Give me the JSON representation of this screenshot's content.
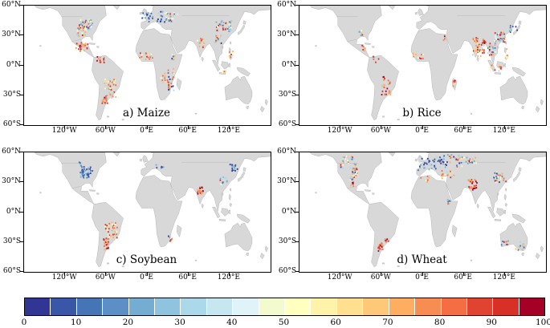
{
  "figure": {
    "background": "#ffffff",
    "land_color": "#d8d8d8",
    "land_border": "#9a9a9a",
    "map_border": "#000000"
  },
  "axes": {
    "lat_ticks": [
      "60°N",
      "30°N",
      "0°N",
      "30°S",
      "60°S"
    ],
    "lon_ticks": [
      "120°W",
      "60°W",
      "0°E",
      "60°E",
      "120°E"
    ]
  },
  "chart_data": {
    "type": "heatmap",
    "description": "Four equirectangular world maps (60N-60S, 180W-180E) of gridded crop values from 0 to 100 with a shared discrete blue-yellow-red colorbar",
    "panels": [
      {
        "label": "a) Maize",
        "regions": [
          {
            "lon": [
              -100,
              -80
            ],
            "lat": [
              36,
              46
            ],
            "n": 60,
            "palette": "coolmix"
          },
          {
            "lon": [
              -104,
              -90
            ],
            "lat": [
              29,
              38
            ],
            "n": 22,
            "palette": "warmmix"
          },
          {
            "lon": [
              -104,
              -86
            ],
            "lat": [
              14,
              23
            ],
            "n": 26,
            "palette": "warm"
          },
          {
            "lon": [
              -76,
              -62
            ],
            "lat": [
              2,
              10
            ],
            "n": 12,
            "palette": "warm"
          },
          {
            "lon": [
              -63,
              -46
            ],
            "lat": [
              -33,
              -13
            ],
            "n": 48,
            "palette": "warmmix"
          },
          {
            "lon": [
              -66,
              -58
            ],
            "lat": [
              -38,
              -32
            ],
            "n": 14,
            "palette": "warm"
          },
          {
            "lon": [
              -8,
              28
            ],
            "lat": [
              43,
              54
            ],
            "n": 36,
            "palette": "cool"
          },
          {
            "lon": [
              26,
              44
            ],
            "lat": [
              44,
              53
            ],
            "n": 20,
            "palette": "coolmix"
          },
          {
            "lon": [
              -14,
              8
            ],
            "lat": [
              6,
              13
            ],
            "n": 20,
            "palette": "warmmix"
          },
          {
            "lon": [
              30,
              40
            ],
            "lat": [
              -26,
              -2
            ],
            "n": 24,
            "palette": "mixed"
          },
          {
            "lon": [
              20,
              30
            ],
            "lat": [
              -18,
              -8
            ],
            "n": 12,
            "palette": "warmmix"
          },
          {
            "lon": [
              35,
              41
            ],
            "lat": [
              5,
              12
            ],
            "n": 10,
            "palette": "mixed"
          },
          {
            "lon": [
              73,
              84
            ],
            "lat": [
              18,
              27
            ],
            "n": 16,
            "palette": "warmmix"
          },
          {
            "lon": [
              100,
              126
            ],
            "lat": [
              34,
              46
            ],
            "n": 40,
            "palette": "coolmix"
          },
          {
            "lon": [
              98,
              108
            ],
            "lat": [
              20,
              30
            ],
            "n": 14,
            "palette": "mixed"
          },
          {
            "lon": [
              118,
              126
            ],
            "lat": [
              7,
              16
            ],
            "n": 8,
            "palette": "warmmix"
          },
          {
            "lon": [
              108,
              115
            ],
            "lat": [
              -7,
              -6
            ],
            "n": 6,
            "palette": "warmmix"
          }
        ]
      },
      {
        "label": "b) Rice",
        "regions": [
          {
            "lon": [
              -93,
              -88
            ],
            "lat": [
              30,
              35
            ],
            "n": 7,
            "palette": "coolmix"
          },
          {
            "lon": [
              -90,
              -83
            ],
            "lat": [
              14,
              22
            ],
            "n": 6,
            "palette": "warm"
          },
          {
            "lon": [
              -60,
              -47
            ],
            "lat": [
              -31,
              -10
            ],
            "n": 26,
            "palette": "warm"
          },
          {
            "lon": [
              -75,
              -63
            ],
            "lat": [
              3,
              9
            ],
            "n": 8,
            "palette": "warmmix"
          },
          {
            "lon": [
              -14,
              2
            ],
            "lat": [
              6,
              12
            ],
            "n": 14,
            "palette": "warmmix"
          },
          {
            "lon": [
              44,
              49
            ],
            "lat": [
              -21,
              -15
            ],
            "n": 6,
            "palette": "warm"
          },
          {
            "lon": [
              30,
              33
            ],
            "lat": [
              24,
              31
            ],
            "n": 4,
            "palette": "warm"
          },
          {
            "lon": [
              73,
              90
            ],
            "lat": [
              9,
              28
            ],
            "n": 55,
            "palette": "warmmix"
          },
          {
            "lon": [
              88,
              93
            ],
            "lat": [
              22,
              26
            ],
            "n": 10,
            "palette": "warm"
          },
          {
            "lon": [
              95,
              107
            ],
            "lat": [
              10,
              22
            ],
            "n": 22,
            "palette": "mixed"
          },
          {
            "lon": [
              105,
              121
            ],
            "lat": [
              22,
              33
            ],
            "n": 40,
            "palette": "coolmix"
          },
          {
            "lon": [
              126,
              140
            ],
            "lat": [
              33,
              40
            ],
            "n": 9,
            "palette": "cool"
          },
          {
            "lon": [
              96,
              118
            ],
            "lat": [
              -8,
              2
            ],
            "n": 12,
            "palette": "warmmix"
          },
          {
            "lon": [
              119,
              125
            ],
            "lat": [
              6,
              17
            ],
            "n": 7,
            "palette": "warmmix"
          }
        ]
      },
      {
        "label": "c) Soybean",
        "regions": [
          {
            "lon": [
              -98,
              -80
            ],
            "lat": [
              34,
              46
            ],
            "n": 55,
            "palette": "cool"
          },
          {
            "lon": [
              -100,
              -96
            ],
            "lat": [
              46,
              50
            ],
            "n": 6,
            "palette": "cool"
          },
          {
            "lon": [
              -58,
              -44
            ],
            "lat": [
              -26,
              -10
            ],
            "n": 34,
            "palette": "warmmix"
          },
          {
            "lon": [
              -64,
              -56
            ],
            "lat": [
              -38,
              -26
            ],
            "n": 24,
            "palette": "warm"
          },
          {
            "lon": [
              -62,
              -56
            ],
            "lat": [
              -18,
              -12
            ],
            "n": 8,
            "palette": "warmmix"
          },
          {
            "lon": [
              8,
              28
            ],
            "lat": [
              44,
              48
            ],
            "n": 8,
            "palette": "cool"
          },
          {
            "lon": [
              73,
              82
            ],
            "lat": [
              18,
              25
            ],
            "n": 20,
            "palette": "warm"
          },
          {
            "lon": [
              120,
              132
            ],
            "lat": [
              41,
              48
            ],
            "n": 20,
            "palette": "cool"
          },
          {
            "lon": [
              105,
              118
            ],
            "lat": [
              28,
              36
            ],
            "n": 12,
            "palette": "coolmix"
          },
          {
            "lon": [
              29,
              36
            ],
            "lat": [
              -30,
              -24
            ],
            "n": 5,
            "palette": "mixed"
          }
        ]
      },
      {
        "label": "d) Wheat",
        "regions": [
          {
            "lon": [
              -106,
              -96
            ],
            "lat": [
              32,
              49
            ],
            "n": 34,
            "palette": "mixed"
          },
          {
            "lon": [
              -117,
              -100
            ],
            "lat": [
              49,
              56
            ],
            "n": 22,
            "palette": "coolmix"
          },
          {
            "lon": [
              -120,
              -116
            ],
            "lat": [
              44,
              48
            ],
            "n": 6,
            "palette": "mixed"
          },
          {
            "lon": [
              -106,
              -100
            ],
            "lat": [
              26,
              30
            ],
            "n": 5,
            "palette": "warm"
          },
          {
            "lon": [
              -65,
              -58
            ],
            "lat": [
              -39,
              -31
            ],
            "n": 18,
            "palette": "warm"
          },
          {
            "lon": [
              -56,
              -50
            ],
            "lat": [
              -30,
              -26
            ],
            "n": 7,
            "palette": "warm"
          },
          {
            "lon": [
              -8,
              30
            ],
            "lat": [
              42,
              56
            ],
            "n": 44,
            "palette": "cool"
          },
          {
            "lon": [
              26,
              46
            ],
            "lat": [
              33,
              42
            ],
            "n": 22,
            "palette": "warmmix"
          },
          {
            "lon": [
              30,
              58
            ],
            "lat": [
              45,
              58
            ],
            "n": 36,
            "palette": "mixed"
          },
          {
            "lon": [
              58,
              78
            ],
            "lat": [
              48,
              55
            ],
            "n": 18,
            "palette": "mixed"
          },
          {
            "lon": [
              66,
              80
            ],
            "lat": [
              22,
              33
            ],
            "n": 30,
            "palette": "warm"
          },
          {
            "lon": [
              104,
              122
            ],
            "lat": [
              30,
              40
            ],
            "n": 30,
            "palette": "mixed"
          },
          {
            "lon": [
              -8,
              10
            ],
            "lat": [
              30,
              36
            ],
            "n": 9,
            "palette": "warmmix"
          },
          {
            "lon": [
              36,
              40
            ],
            "lat": [
              6,
              12
            ],
            "n": 7,
            "palette": "mixed"
          },
          {
            "lon": [
              115,
              125
            ],
            "lat": [
              -34,
              -28
            ],
            "n": 10,
            "palette": "mixed"
          },
          {
            "lon": [
              135,
              150
            ],
            "lat": [
              -38,
              -30
            ],
            "n": 16,
            "palette": "coolmix"
          }
        ]
      }
    ],
    "palettes": {
      "cool": [
        "#313695",
        "#3b53a4",
        "#4575b4",
        "#74add1",
        "#abd9e9"
      ],
      "coolmix": [
        "#4575b4",
        "#74add1",
        "#abd9e9",
        "#e0f3f8",
        "#ffffbf",
        "#fdae61",
        "#d73027"
      ],
      "warm": [
        "#a50026",
        "#d73027",
        "#f46d43",
        "#fdae61",
        "#f88d52"
      ],
      "warmmix": [
        "#d73027",
        "#f46d43",
        "#fdae61",
        "#fee090",
        "#ffffbf",
        "#abd9e9"
      ],
      "mixed": [
        "#313695",
        "#4575b4",
        "#74add1",
        "#abd9e9",
        "#ffffbf",
        "#fdae61",
        "#f46d43",
        "#d73027"
      ]
    },
    "colorbar": {
      "ticks": [
        0,
        10,
        20,
        30,
        40,
        50,
        60,
        70,
        80,
        90,
        100
      ],
      "colors": [
        "#313695",
        "#3a56a7",
        "#4575b4",
        "#5c8fc3",
        "#74add1",
        "#90c3dd",
        "#abd9e9",
        "#c6e6f0",
        "#e0f3f8",
        "#f3facd",
        "#ffffbf",
        "#fff3a9",
        "#fee090",
        "#fdc878",
        "#fdae61",
        "#f88d52",
        "#f46d43",
        "#e04430",
        "#d73027",
        "#a50026"
      ]
    }
  }
}
